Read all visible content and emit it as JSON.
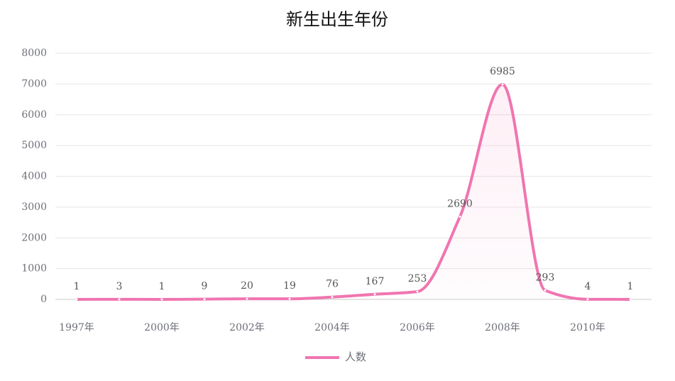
{
  "chart_data": {
    "type": "line",
    "title": "新生出生年份",
    "categories": [
      "1997年",
      null,
      "2000年",
      null,
      "2002年",
      null,
      "2004年",
      null,
      "2006年",
      null,
      "2008年",
      null,
      "2010年",
      null
    ],
    "series": [
      {
        "name": "人数",
        "color": "#f075b0",
        "values": [
          1,
          3,
          1,
          9,
          20,
          19,
          76,
          167,
          253,
          2690,
          6985,
          293,
          4,
          1
        ]
      }
    ],
    "ylim": [
      0,
      8000
    ],
    "yticks": [
      0,
      1000,
      2000,
      3000,
      4000,
      5000,
      6000,
      7000,
      8000
    ],
    "grid": true,
    "smooth": true,
    "legend": "bottom"
  }
}
